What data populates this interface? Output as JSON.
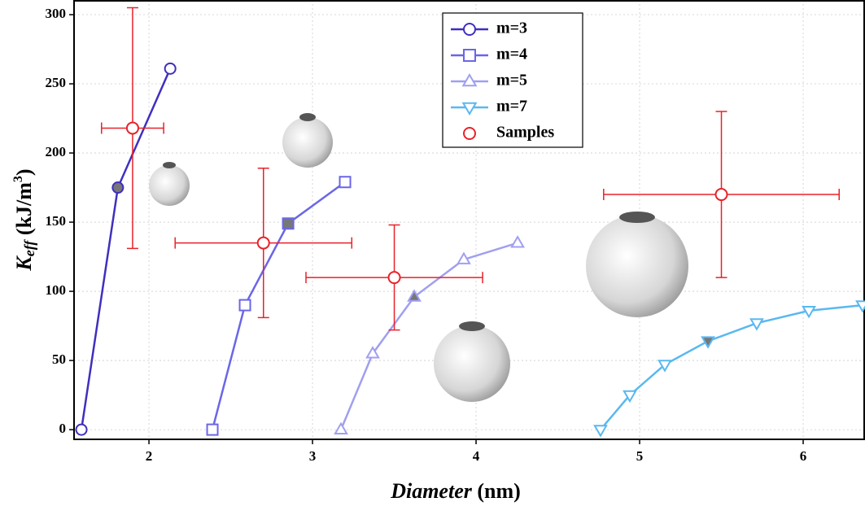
{
  "chart_data": {
    "type": "line",
    "xlabel": {
      "name": "Diameter",
      "unit": "(nm)"
    },
    "ylabel": {
      "symbol": "K",
      "subscript": "eff",
      "unit": "(kJ/m",
      "superscript": "3",
      "close": ")"
    },
    "xlim": [
      1.542,
      6.378
    ],
    "ylim": [
      -7,
      310.6
    ],
    "xticks": [
      2,
      3,
      4,
      5,
      6
    ],
    "yticks": [
      0,
      50,
      100,
      150,
      200,
      250,
      300
    ],
    "grid": true,
    "legend": "upper center",
    "series": [
      {
        "name": "m=3",
        "color": "#3f2fbf",
        "marker": "circle",
        "filled_index": 1,
        "x": [
          1.587,
          1.81,
          2.13
        ],
        "values": [
          0,
          175,
          261
        ]
      },
      {
        "name": "m=4",
        "color": "#6a66e8",
        "marker": "square",
        "filled_index": 2,
        "x": [
          2.388,
          2.587,
          2.851,
          3.199
        ],
        "values": [
          0,
          90,
          149,
          179
        ]
      },
      {
        "name": "m=5",
        "color": "#a09ff0",
        "marker": "triangle-up",
        "filled_index": 2,
        "x": [
          3.174,
          3.368,
          3.622,
          3.925,
          4.254
        ],
        "values": [
          0,
          55,
          96,
          123,
          135
        ]
      },
      {
        "name": "m=7",
        "color": "#5ab8f0",
        "marker": "triangle-down",
        "filled_index": 3,
        "x": [
          4.761,
          4.94,
          5.154,
          5.418,
          5.716,
          6.035,
          6.363
        ],
        "values": [
          0,
          25,
          47,
          64,
          77,
          86,
          90
        ]
      },
      {
        "name": "Samples",
        "color": "#e8222a",
        "marker": "circle",
        "type": "scatter",
        "x": [
          1.9,
          2.7,
          3.5,
          5.5
        ],
        "values": [
          218,
          135,
          110,
          170
        ],
        "xerr": [
          0.19,
          0.54,
          0.54,
          0.72
        ],
        "yerr": [
          87,
          54,
          38,
          60
        ]
      }
    ]
  }
}
